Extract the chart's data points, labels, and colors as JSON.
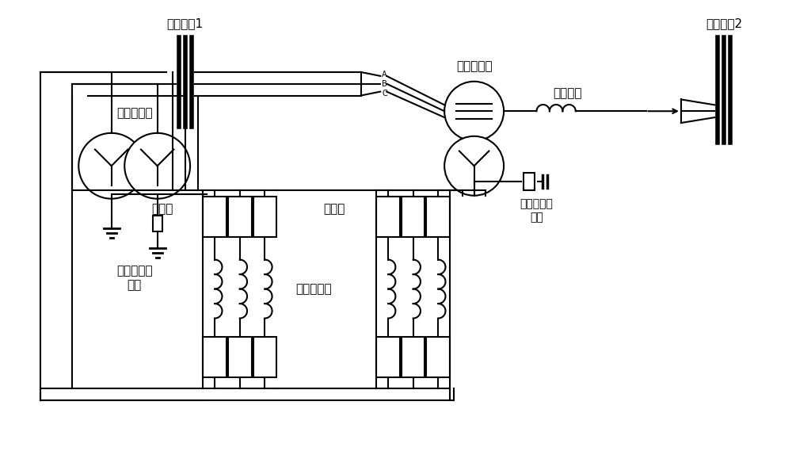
{
  "bg_color": "#ffffff",
  "line_color": "#000000",
  "lw": 1.5,
  "tlw": 4.0,
  "fs": 11,
  "labels": {
    "bus1": "交流母线1",
    "bus2": "交流母线2",
    "series_tr": "串联变压器",
    "parallel_tr": "并联变压器",
    "ac_line": "交流线路",
    "valve1": "换流阀",
    "valve2": "换流阀",
    "bridge_reactor": "桥臂电抗器",
    "neutral1": "中性点接地\n电阻",
    "neutral2": "中性点接地\n电阻"
  }
}
